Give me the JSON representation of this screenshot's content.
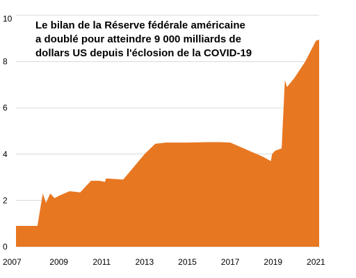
{
  "chart_data": {
    "type": "area",
    "title_lines": [
      "Le bilan de la Réserve fédérale américaine",
      "a doublé pour atteindre 9 000 milliards de",
      "dollars US depuis l'éclosion de la COVID-19"
    ],
    "xlabel": "",
    "ylabel": "",
    "xlim": [
      2007.0,
      2021.15
    ],
    "ylim": [
      0,
      10
    ],
    "x_ticks": [
      2007,
      2009,
      2011,
      2013,
      2015,
      2017,
      2019,
      2021
    ],
    "y_ticks": [
      0,
      2,
      4,
      6,
      8,
      10
    ],
    "grid": true,
    "legend": "none",
    "fill_color": "#E87722",
    "series": [
      {
        "x": [
          2007.0,
          2008.0,
          2008.25,
          2008.4,
          2008.6,
          2008.8,
          2009.0,
          2009.5,
          2010.0,
          2010.5,
          2010.9,
          2011.15,
          2011.2,
          2012.0,
          2012.5,
          2013.0,
          2013.5,
          2014.0,
          2015.0,
          2016.0,
          2016.5,
          2017.0,
          2017.5,
          2018.0,
          2018.5,
          2018.9,
          2018.95,
          2019.1,
          2019.4,
          2019.55,
          2019.65,
          2020.0,
          2020.5,
          2021.0,
          2021.15
        ],
        "values": [
          0.9,
          0.9,
          2.3,
          1.9,
          2.3,
          2.1,
          2.2,
          2.4,
          2.35,
          2.85,
          2.85,
          2.8,
          2.95,
          2.9,
          3.45,
          4.0,
          4.45,
          4.5,
          4.5,
          4.52,
          4.52,
          4.5,
          4.3,
          4.1,
          3.9,
          3.7,
          4.0,
          4.15,
          4.25,
          7.2,
          6.9,
          7.3,
          8.0,
          8.9,
          8.95
        ]
      }
    ]
  }
}
